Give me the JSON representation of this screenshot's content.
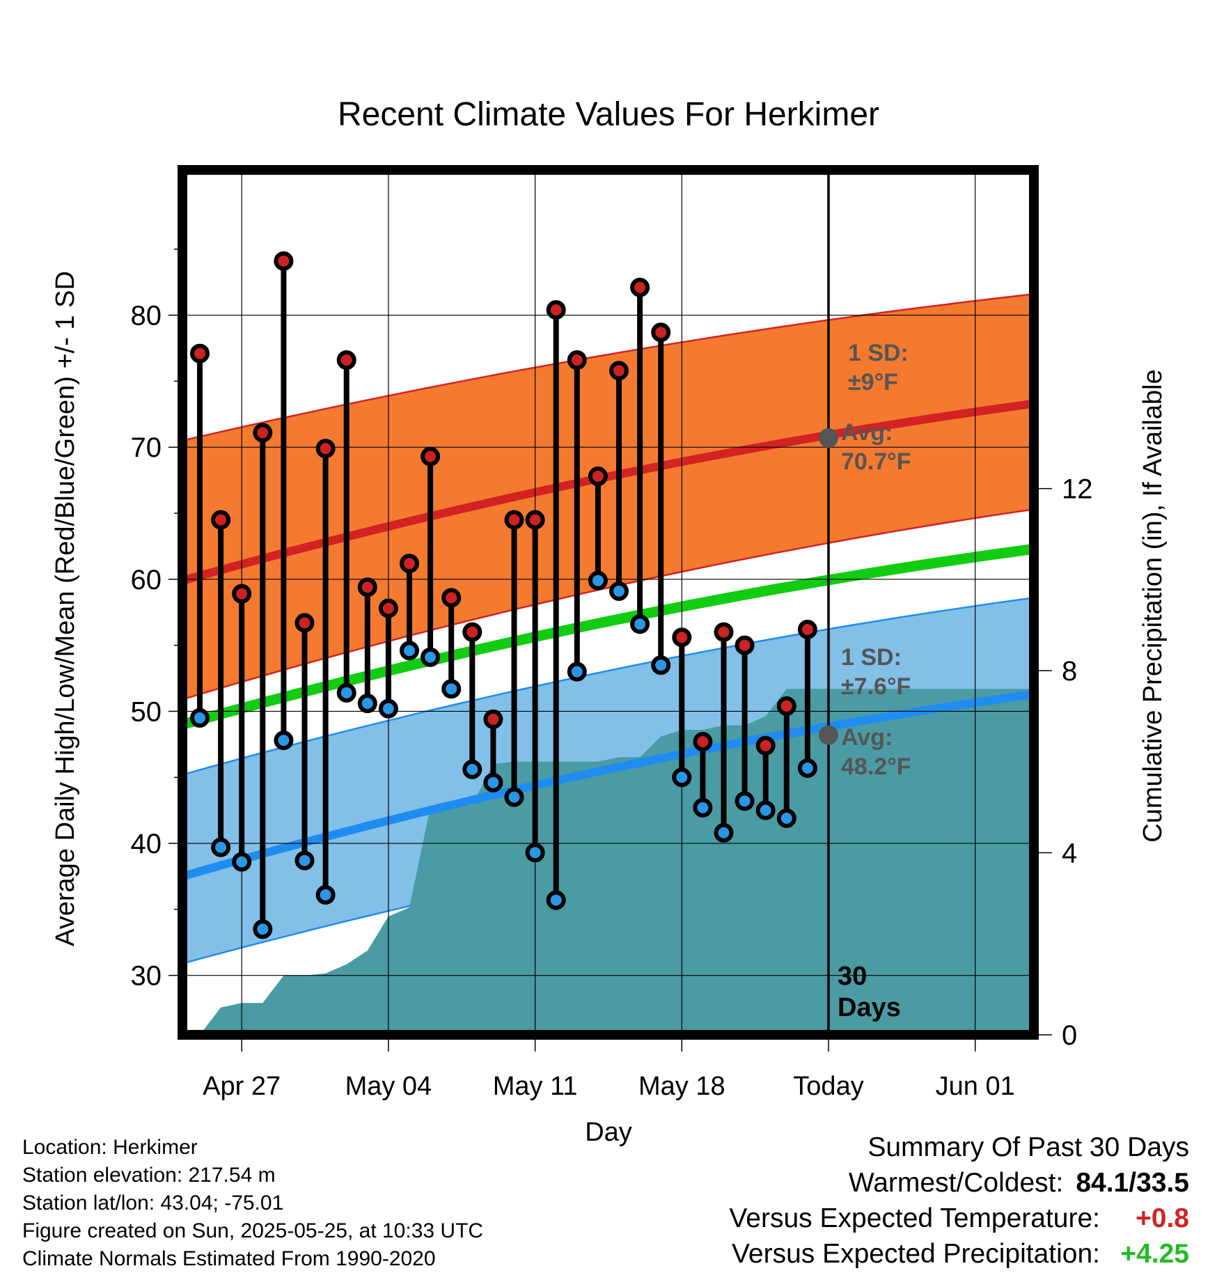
{
  "chart_data": {
    "type": "line",
    "title": "Recent Climate Values For Herkimer",
    "xlabel": "Day",
    "ylabel": "Average Daily High/Low/Mean (Red/Blue/Green) +/- 1 SD",
    "y2label": "Cumulative Precipitation (in), If Available",
    "xticks": [
      "Apr 27",
      "May 04",
      "May 11",
      "May 18",
      "Today",
      "Jun 01"
    ],
    "ylim": [
      25.5,
      91
    ],
    "yticks": [
      30,
      40,
      50,
      60,
      70,
      80
    ],
    "y2lim": [
      0,
      19
    ],
    "y2ticks": [
      0,
      4,
      8,
      12
    ],
    "days_label": "30\nDays",
    "high_band": {
      "label_sd": "1 SD:\n±9°F",
      "label_avg": "Avg:\n70.7°F",
      "avg_start": 59.9,
      "avg_end": 73.3,
      "upper_start": 70.5,
      "upper_end": 81.6,
      "lower_start": 50.9,
      "lower_end": 65.3,
      "today_avg": 70.7,
      "color": "#f47a30",
      "line_color": "#d32222"
    },
    "low_band": {
      "label_sd": "1 SD:\n±7.6°F",
      "label_avg": "Avg:\n48.2°F",
      "avg_start": 37.5,
      "avg_end": 51.3,
      "upper_start": 45.2,
      "upper_end": 58.6,
      "lower_start": 30.9,
      "lower_end": 43.9,
      "today_avg": 48.2,
      "color": "#82c0e8",
      "line_color": "#1e8cf0"
    },
    "mean_line": {
      "start": 49.0,
      "end": 62.3,
      "color": "#11cc11"
    },
    "days": [
      "Apr 25",
      "Apr 26",
      "Apr 27",
      "Apr 28",
      "Apr 29",
      "Apr 30",
      "May 01",
      "May 02",
      "May 03",
      "May 04",
      "May 05",
      "May 06",
      "May 07",
      "May 08",
      "May 09",
      "May 10",
      "May 11",
      "May 12",
      "May 13",
      "May 14",
      "May 15",
      "May 16",
      "May 17",
      "May 18",
      "May 19",
      "May 20",
      "May 21",
      "May 22",
      "May 23",
      "May 24"
    ],
    "series": [
      {
        "name": "High",
        "color": "#cc2222",
        "values": [
          77.1,
          64.5,
          58.9,
          71.1,
          84.1,
          56.7,
          69.9,
          76.6,
          59.4,
          57.8,
          61.2,
          69.3,
          58.6,
          56.0,
          49.4,
          64.5,
          64.5,
          80.4,
          76.6,
          67.8,
          75.8,
          82.1,
          78.7,
          55.6,
          47.7,
          56.0,
          55.0,
          47.4,
          50.4,
          56.2
        ]
      },
      {
        "name": "Low",
        "color": "#2a96e6",
        "values": [
          49.5,
          39.7,
          38.6,
          33.5,
          47.8,
          38.7,
          36.1,
          51.4,
          50.6,
          50.2,
          54.6,
          54.1,
          51.7,
          45.6,
          44.6,
          43.5,
          39.3,
          35.7,
          53.0,
          59.9,
          59.1,
          56.6,
          53.5,
          45.0,
          42.7,
          40.8,
          43.2,
          42.5,
          41.9,
          45.7
        ]
      }
    ],
    "precip": [
      0.0,
      0.6,
      0.7,
      0.7,
      1.3,
      1.3,
      1.35,
      1.55,
      1.85,
      2.6,
      2.8,
      5.0,
      5.05,
      5.05,
      5.95,
      6.0,
      6.0,
      6.0,
      6.0,
      6.0,
      6.1,
      6.1,
      6.55,
      6.7,
      6.7,
      6.8,
      6.8,
      7.0,
      7.6,
      7.6
    ],
    "precip_color": "#4a9ba4"
  },
  "footer": {
    "location": "Location: Herkimer",
    "elevation": "Station elevation: 217.54 m",
    "latlon": "Station lat/lon: 43.04; -75.01",
    "created": "Figure created on Sun, 2025-05-25, at 10:33 UTC",
    "normals": "Climate Normals Estimated From 1990-2020"
  },
  "summary": {
    "heading": "Summary Of Past 30 Days",
    "warm_cold_label": "Warmest/Coldest:",
    "warm_cold_value": "84.1/33.5",
    "temp_label": "Versus Expected Temperature:",
    "temp_value": "+0.8",
    "temp_color": "#d32222",
    "precip_label": "Versus Expected Precipitation:",
    "precip_value": "+4.25",
    "precip_color": "#22bb22"
  }
}
